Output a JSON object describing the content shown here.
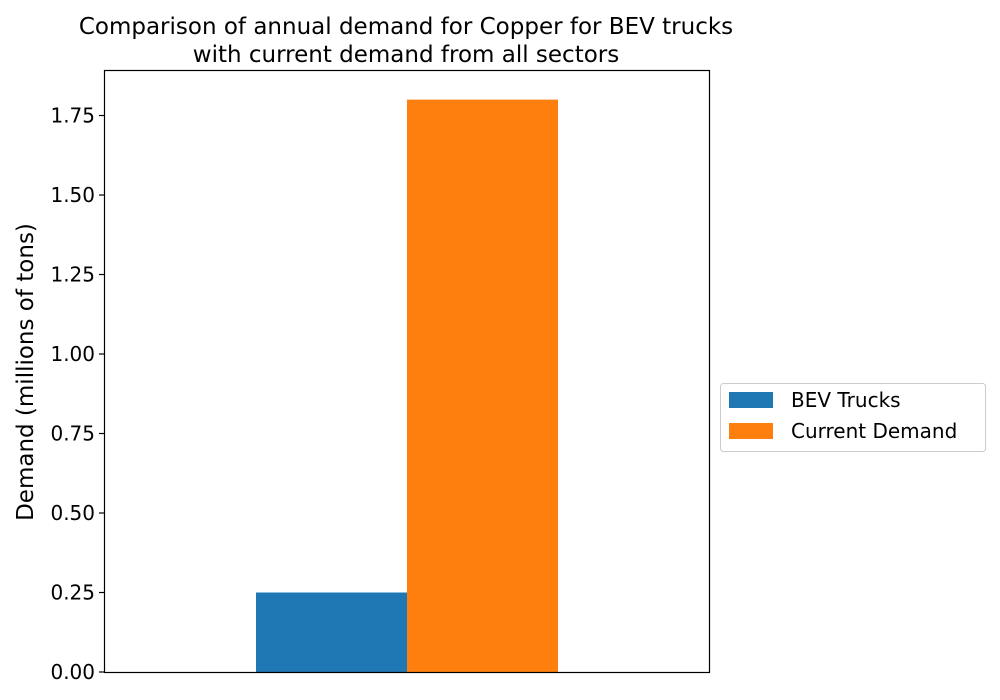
{
  "chart_data": {
    "type": "bar",
    "title_lines": [
      "Comparison of annual demand for Copper for BEV trucks",
      "with current demand from all sectors"
    ],
    "xlabel": "",
    "ylabel": "Demand (millions of tons)",
    "ylim": [
      0,
      1.89
    ],
    "yticks": [
      "0.00",
      "0.25",
      "0.50",
      "0.75",
      "1.00",
      "1.25",
      "1.50",
      "1.75"
    ],
    "grid": false,
    "legend_position": "right",
    "series": [
      {
        "name": "BEV Trucks",
        "value": 0.25,
        "color": "#1f77b4"
      },
      {
        "name": "Current Demand",
        "value": 1.8,
        "color": "#ff7f0e"
      }
    ]
  }
}
